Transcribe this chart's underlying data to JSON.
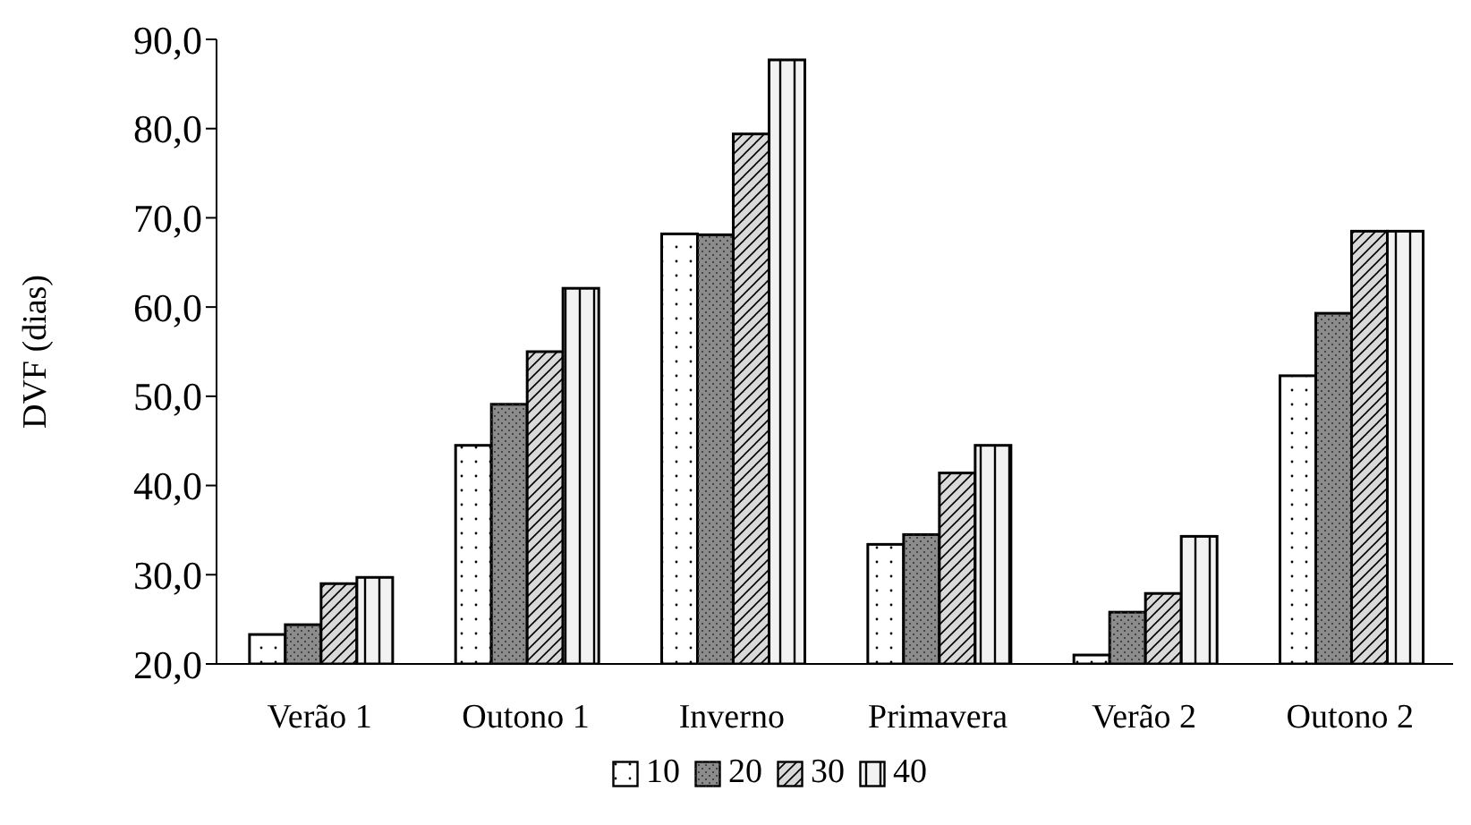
{
  "chart_data": {
    "type": "bar",
    "ylabel": "DVF (dias)",
    "categories": [
      "Verão 1",
      "Outono 1",
      "Inverno",
      "Primavera",
      "Verão 2",
      "Outono 2"
    ],
    "series": [
      {
        "name": "10",
        "color": "#ffffff",
        "values": [
          23.3,
          44.5,
          68.2,
          33.4,
          21.0,
          52.3
        ]
      },
      {
        "name": "20",
        "color": "#8c8c8c",
        "values": [
          24.4,
          49.1,
          68.1,
          34.5,
          25.8,
          59.3
        ]
      },
      {
        "name": "30",
        "color": "#d9d9d9",
        "values": [
          29.0,
          55.0,
          79.4,
          41.4,
          27.9,
          68.5
        ]
      },
      {
        "name": "40",
        "color": "#f2f2f2",
        "values": [
          29.7,
          62.1,
          87.7,
          44.5,
          34.3,
          68.5
        ]
      }
    ],
    "ylim": [
      20,
      90
    ],
    "yticks": [
      {
        "value": 20,
        "label": "20,0"
      },
      {
        "value": 30,
        "label": "30,0"
      },
      {
        "value": 40,
        "label": "40,0"
      },
      {
        "value": 50,
        "label": "50,0"
      },
      {
        "value": 60,
        "label": "60,0"
      },
      {
        "value": 70,
        "label": "70,0"
      },
      {
        "value": 80,
        "label": "80,0"
      },
      {
        "value": 90,
        "label": "90,0"
      }
    ],
    "grid": false,
    "legend": "bottom"
  }
}
